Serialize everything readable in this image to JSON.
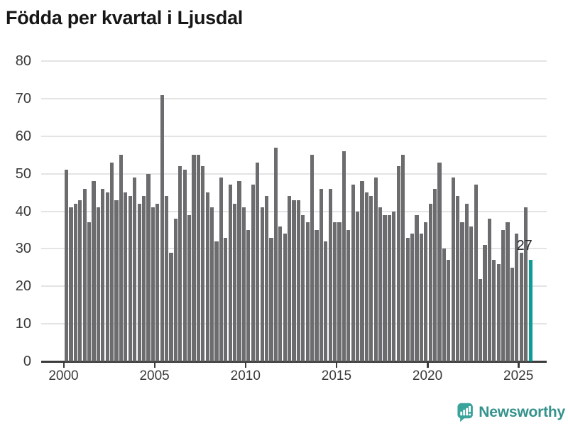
{
  "title": "Födda per kvartal i Ljusdal",
  "annotation": {
    "label": "27"
  },
  "logo": {
    "text": "Newsworthy"
  },
  "colors": {
    "bar": "#6c6c6f",
    "highlight": "#0d9c97",
    "grid": "#e4e4e4",
    "axis": "#3b3b3b",
    "title": "#161616",
    "logo_teal": "#35928c",
    "logo_icon": "#3aa39c"
  },
  "chart_data": {
    "type": "bar",
    "title": "Födda per kvartal i Ljusdal",
    "xlabel": "",
    "ylabel": "",
    "ylim": [
      0,
      80
    ],
    "grid": "horizontal",
    "y_ticks": [
      0,
      10,
      20,
      30,
      40,
      50,
      60,
      70,
      80
    ],
    "x_tick_labels": [
      "2000",
      "2005",
      "2010",
      "2015",
      "2020",
      "2025"
    ],
    "series_name": "Födda per kvartal",
    "quarters_per_year": 4,
    "values_by_year": [
      {
        "year": 2000,
        "values": [
          51,
          41,
          42,
          43
        ]
      },
      {
        "year": 2001,
        "values": [
          46,
          37,
          48,
          41
        ]
      },
      {
        "year": 2002,
        "values": [
          46,
          45,
          53,
          43
        ]
      },
      {
        "year": 2003,
        "values": [
          55,
          45,
          44,
          49
        ]
      },
      {
        "year": 2004,
        "values": [
          42,
          44,
          50,
          41
        ]
      },
      {
        "year": 2005,
        "values": [
          42,
          71,
          44,
          29
        ]
      },
      {
        "year": 2006,
        "values": [
          38,
          52,
          51,
          39
        ]
      },
      {
        "year": 2007,
        "values": [
          55,
          55,
          52,
          45
        ]
      },
      {
        "year": 2008,
        "values": [
          41,
          32,
          49,
          33
        ]
      },
      {
        "year": 2009,
        "values": [
          47,
          42,
          48,
          41
        ]
      },
      {
        "year": 2010,
        "values": [
          35,
          47,
          53,
          41
        ]
      },
      {
        "year": 2011,
        "values": [
          44,
          33,
          57,
          36
        ]
      },
      {
        "year": 2012,
        "values": [
          34,
          44,
          43,
          43
        ]
      },
      {
        "year": 2013,
        "values": [
          39,
          37,
          55,
          35
        ]
      },
      {
        "year": 2014,
        "values": [
          46,
          32,
          46,
          37
        ]
      },
      {
        "year": 2015,
        "values": [
          37,
          56,
          35,
          47
        ]
      },
      {
        "year": 2016,
        "values": [
          40,
          48,
          45,
          44
        ]
      },
      {
        "year": 2017,
        "values": [
          49,
          41,
          39,
          39
        ]
      },
      {
        "year": 2018,
        "values": [
          40,
          52,
          55,
          33
        ]
      },
      {
        "year": 2019,
        "values": [
          34,
          39,
          34,
          37
        ]
      },
      {
        "year": 2020,
        "values": [
          42,
          46,
          53,
          30
        ]
      },
      {
        "year": 2021,
        "values": [
          27,
          49,
          44,
          37
        ]
      },
      {
        "year": 2022,
        "values": [
          42,
          36,
          47,
          22
        ]
      },
      {
        "year": 2023,
        "values": [
          31,
          38,
          27,
          26
        ]
      },
      {
        "year": 2024,
        "values": [
          35,
          37,
          25,
          34
        ]
      },
      {
        "year": 2025,
        "values": [
          29,
          41,
          27
        ]
      }
    ],
    "highlight": {
      "year": 2025,
      "quarter": 3,
      "value": 27,
      "label": "27"
    }
  }
}
